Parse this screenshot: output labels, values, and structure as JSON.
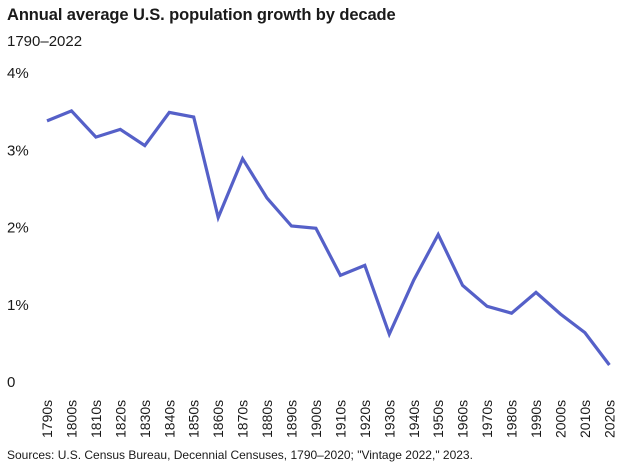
{
  "chart_data": {
    "type": "line",
    "title": "Annual average U.S. population growth by decade",
    "subtitle": "1790–2022",
    "xlabel": "",
    "ylabel": "",
    "categories": [
      "1790s",
      "1800s",
      "1810s",
      "1820s",
      "1830s",
      "1840s",
      "1850s",
      "1860s",
      "1870s",
      "1880s",
      "1890s",
      "1900s",
      "1910s",
      "1920s",
      "1930s",
      "1940s",
      "1950s",
      "1960s",
      "1970s",
      "1980s",
      "1990s",
      "2000s",
      "2010s",
      "2020s"
    ],
    "series": [
      {
        "name": "Annual average growth (%)",
        "color": "#5560c8",
        "values": [
          3.38,
          3.51,
          3.17,
          3.27,
          3.06,
          3.49,
          3.43,
          2.13,
          2.89,
          2.38,
          2.02,
          1.99,
          1.38,
          1.51,
          0.62,
          1.32,
          1.91,
          1.25,
          0.98,
          0.89,
          1.16,
          0.88,
          0.64,
          0.22
        ]
      }
    ],
    "ylim": [
      0,
      4
    ],
    "yticks": [
      0,
      1,
      2,
      3,
      4
    ],
    "ytick_labels": [
      "0",
      "1%",
      "2%",
      "3%",
      "4%"
    ],
    "grid": false,
    "source": "Sources: U.S. Census Bureau, Decennial Censuses, 1790–2020; \"Vintage 2022,\" 2023."
  }
}
